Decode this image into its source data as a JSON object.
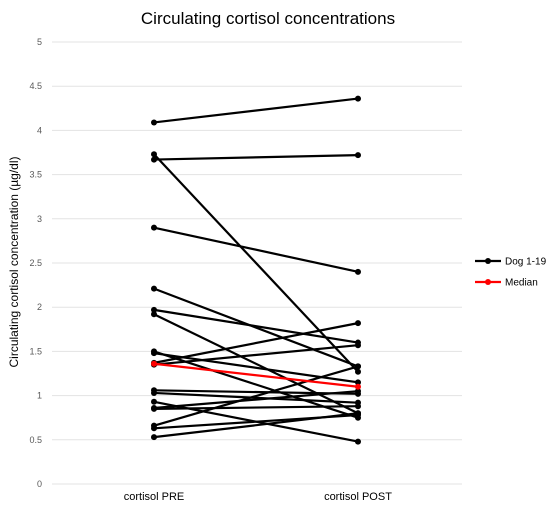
{
  "chart_data": {
    "type": "line",
    "title": "Circulating cortisol concentrations",
    "xlabel": "",
    "ylabel": "Circulating cortisol concentration (µg/dl)",
    "categories": [
      "cortisol PRE",
      "cortisol POST"
    ],
    "ylim": [
      0,
      5
    ],
    "yticks": [
      "0",
      "0.5",
      "1",
      "1.5",
      "2",
      "2.5",
      "3",
      "3.5",
      "4",
      "4.5",
      "5"
    ],
    "grid": true,
    "legend_position": "right",
    "legend": [
      {
        "label": "Dog 1-19",
        "color": "#000000"
      },
      {
        "label": "Median",
        "color": "#ff0000"
      }
    ],
    "series": [
      {
        "values": [
          4.09,
          4.36
        ],
        "color": "#000000"
      },
      {
        "values": [
          3.73,
          1.27
        ],
        "color": "#000000"
      },
      {
        "values": [
          3.67,
          3.72
        ],
        "color": "#000000"
      },
      {
        "values": [
          2.9,
          2.4
        ],
        "color": "#000000"
      },
      {
        "values": [
          2.21,
          1.33
        ],
        "color": "#000000"
      },
      {
        "values": [
          1.97,
          1.6
        ],
        "color": "#000000"
      },
      {
        "values": [
          1.92,
          0.8
        ],
        "color": "#000000"
      },
      {
        "values": [
          1.5,
          0.75
        ],
        "color": "#000000"
      },
      {
        "values": [
          1.48,
          1.15
        ],
        "color": "#000000"
      },
      {
        "values": [
          1.37,
          1.82
        ],
        "color": "#000000"
      },
      {
        "values": [
          1.35,
          1.57
        ],
        "color": "#000000"
      },
      {
        "values": [
          1.06,
          1.02
        ],
        "color": "#000000"
      },
      {
        "values": [
          1.03,
          0.92
        ],
        "color": "#000000"
      },
      {
        "values": [
          0.93,
          0.48
        ],
        "color": "#000000"
      },
      {
        "values": [
          0.86,
          1.05
        ],
        "color": "#000000"
      },
      {
        "values": [
          0.85,
          0.88
        ],
        "color": "#000000"
      },
      {
        "values": [
          0.66,
          1.33
        ],
        "color": "#000000"
      },
      {
        "values": [
          0.63,
          0.78
        ],
        "color": "#000000"
      },
      {
        "values": [
          0.53,
          0.8
        ],
        "color": "#000000"
      },
      {
        "values": [
          1.36,
          1.1
        ],
        "color": "#ff0000"
      }
    ]
  }
}
